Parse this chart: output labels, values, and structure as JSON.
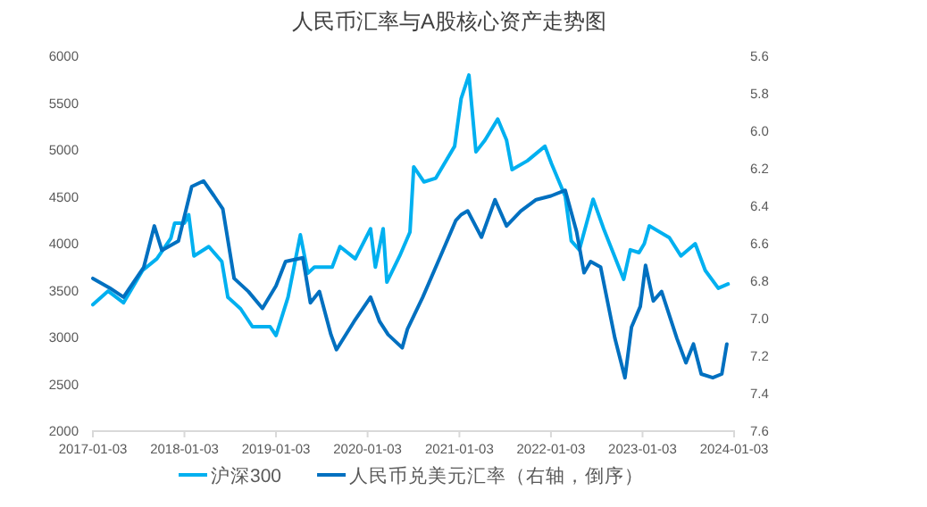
{
  "chart_data": {
    "type": "line",
    "title": "人民币汇率与A股核心资产走势图",
    "xlim": [
      "2017-01-03",
      "2024-01-03"
    ],
    "xticks": [
      "2017-01-03",
      "2018-01-03",
      "2019-01-03",
      "2020-01-03",
      "2021-01-03",
      "2022-01-03",
      "2023-01-03",
      "2024-01-03"
    ],
    "ylim": [
      2000,
      6000
    ],
    "yticks": [
      2000,
      2500,
      3000,
      3500,
      4000,
      4500,
      5000,
      5500,
      6000
    ],
    "y2lim": [
      7.6,
      5.6
    ],
    "y2ticks": [
      {
        "value": 7.6,
        "label": "7.6"
      },
      {
        "value": 7.4,
        "label": "7.4"
      },
      {
        "value": 7.2,
        "label": "7.2"
      },
      {
        "value": 7.0,
        "label": "7.0"
      },
      {
        "value": 6.8,
        "label": "6.8"
      },
      {
        "value": 6.6,
        "label": "6.6"
      },
      {
        "value": 6.4,
        "label": "6.4"
      },
      {
        "value": 6.2,
        "label": "6.2"
      },
      {
        "value": 6.0,
        "label": "6.0"
      },
      {
        "value": 5.8,
        "label": "5.8"
      },
      {
        "value": 5.6,
        "label": "5.6"
      }
    ],
    "grid": false,
    "legend": "bottom",
    "marker": "none",
    "line_style": "solid",
    "series": [
      {
        "name": "沪深300",
        "color": "#00b0f0",
        "x": [
          "2017-01-03",
          "2017-03-05",
          "2017-05-05",
          "2017-07-20",
          "2017-09-15",
          "2017-11-10",
          "2017-11-25",
          "2018-01-03",
          "2018-01-20",
          "2018-02-10",
          "2018-04-10",
          "2018-06-01",
          "2018-06-25",
          "2018-08-15",
          "2018-10-01",
          "2018-12-10",
          "2019-01-03",
          "2019-02-20",
          "2019-04-10",
          "2019-05-10",
          "2019-06-05",
          "2019-08-15",
          "2019-09-15",
          "2019-11-15",
          "2020-01-15",
          "2020-02-03",
          "2020-03-05",
          "2020-03-20",
          "2020-05-10",
          "2020-06-20",
          "2020-07-05",
          "2020-08-15",
          "2020-10-01",
          "2020-12-15",
          "2021-01-10",
          "2021-02-10",
          "2021-03-10",
          "2021-04-15",
          "2021-06-05",
          "2021-07-10",
          "2021-08-01",
          "2021-10-01",
          "2021-12-10",
          "2022-01-05",
          "2022-03-01",
          "2022-03-25",
          "2022-04-26",
          "2022-06-20",
          "2022-08-01",
          "2022-10-20",
          "2022-11-15",
          "2022-12-20",
          "2023-01-10",
          "2023-01-30",
          "2023-04-20",
          "2023-06-05",
          "2023-08-01",
          "2023-09-10",
          "2023-11-01",
          "2023-12-10"
        ],
        "values": [
          3340,
          3485,
          3360,
          3705,
          3830,
          4050,
          4210,
          4210,
          4300,
          3860,
          3960,
          3800,
          3420,
          3295,
          3105,
          3105,
          3010,
          3420,
          4085,
          3675,
          3740,
          3740,
          3960,
          3830,
          4150,
          3740,
          4150,
          3580,
          3860,
          4115,
          4810,
          4650,
          4690,
          5030,
          5540,
          5790,
          4970,
          5095,
          5320,
          5095,
          4780,
          4875,
          5030,
          4845,
          4495,
          4020,
          3925,
          4465,
          4150,
          3610,
          3925,
          3895,
          3990,
          4180,
          4055,
          3860,
          3990,
          3705,
          3515,
          3560
        ]
      },
      {
        "name": "人民币兑美元汇率（右轴，倒序）",
        "color": "#0070c0",
        "axis": "y2",
        "x": [
          "2017-01-03",
          "2017-03-10",
          "2017-05-05",
          "2017-07-25",
          "2017-09-05",
          "2017-10-05",
          "2017-12-10",
          "2018-02-01",
          "2018-03-20",
          "2018-05-01",
          "2018-06-05",
          "2018-07-20",
          "2018-09-15",
          "2018-11-10",
          "2019-01-03",
          "2019-02-10",
          "2019-04-20",
          "2019-05-20",
          "2019-06-25",
          "2019-08-10",
          "2019-09-01",
          "2019-11-10",
          "2020-01-15",
          "2020-02-20",
          "2020-03-25",
          "2020-05-20",
          "2020-06-10",
          "2020-08-10",
          "2020-10-20",
          "2020-12-20",
          "2021-01-10",
          "2021-02-05",
          "2021-04-01",
          "2021-05-25",
          "2021-07-10",
          "2021-09-05",
          "2021-11-05",
          "2022-01-03",
          "2022-03-01",
          "2022-04-15",
          "2022-05-15",
          "2022-06-10",
          "2022-07-20",
          "2022-09-15",
          "2022-10-25",
          "2022-11-20",
          "2022-12-25",
          "2023-01-15",
          "2023-02-15",
          "2023-03-20",
          "2023-05-20",
          "2023-06-25",
          "2023-07-25",
          "2023-08-25",
          "2023-10-10",
          "2023-11-15",
          "2023-12-05"
        ],
        "values": [
          6.79,
          6.84,
          6.89,
          6.73,
          6.51,
          6.64,
          6.59,
          6.3,
          6.27,
          6.35,
          6.42,
          6.79,
          6.86,
          6.95,
          6.83,
          6.7,
          6.68,
          6.92,
          6.86,
          7.09,
          7.17,
          7.02,
          6.89,
          7.02,
          7.09,
          7.16,
          7.06,
          6.89,
          6.67,
          6.48,
          6.45,
          6.43,
          6.57,
          6.37,
          6.51,
          6.43,
          6.37,
          6.35,
          6.32,
          6.54,
          6.76,
          6.7,
          6.73,
          7.11,
          7.32,
          7.05,
          6.94,
          6.72,
          6.91,
          6.86,
          7.11,
          7.24,
          7.14,
          7.3,
          7.32,
          7.3,
          7.14
        ]
      }
    ]
  }
}
